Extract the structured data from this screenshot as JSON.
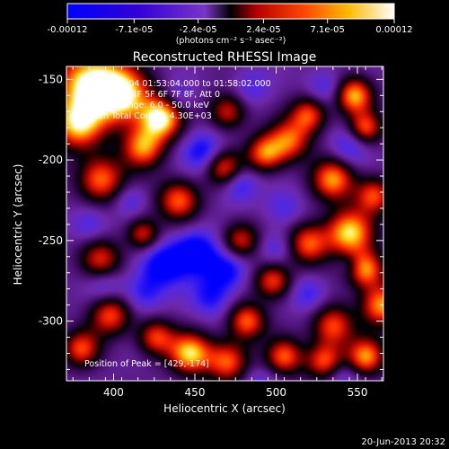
{
  "chart_data": {
    "type": "heatmap",
    "title": "Reconstructed RHESSI Image",
    "xlabel": "Heliocentric X (arcsec)",
    "ylabel": "Heliocentric Y (arcsec)",
    "xlim": [
      371,
      566
    ],
    "ylim": [
      -337,
      -142
    ],
    "x_ticks": [
      400,
      450,
      500,
      550
    ],
    "y_ticks": [
      -150,
      -200,
      -250,
      -300
    ],
    "colorbar": {
      "ticks": [
        "-0.00012",
        "-7.1e-05",
        "-2.4e-05",
        "2.4e-05",
        "7.1e-05",
        "0.00012"
      ],
      "tick_values": [
        -0.00012,
        -7.1e-05,
        -2.4e-05,
        2.4e-05,
        7.1e-05,
        0.00012
      ],
      "range": [
        -0.00012,
        0.00012
      ],
      "unit_label": "(photons cm⁻² s⁻¹ asec⁻²)"
    },
    "annotations": [
      "18-Nov-2004 01:53:04.000 to 01:58:02.000",
      "Detectors: 4F 5F 6F 7F 8F, Att 0",
      "Energy Range: 6.0 - 50.0 keV",
      "Clean    Total Counts: 4.30E+03"
    ],
    "peak_label": "Position of Peak = [429,-174]",
    "peak": [
      429,
      -174
    ],
    "features": [
      {
        "x": 385,
        "y": -152,
        "v": 1.0,
        "s": 14
      },
      {
        "x": 405,
        "y": -160,
        "v": 0.95,
        "s": 12
      },
      {
        "x": 429,
        "y": -174,
        "v": 1.0,
        "s": 9
      },
      {
        "x": 378,
        "y": -178,
        "v": 0.8,
        "s": 11
      },
      {
        "x": 418,
        "y": -192,
        "v": 0.7,
        "s": 9
      },
      {
        "x": 392,
        "y": -212,
        "v": 0.65,
        "s": 10
      },
      {
        "x": 440,
        "y": -225,
        "v": 0.6,
        "s": 9
      },
      {
        "x": 468,
        "y": -205,
        "v": 0.55,
        "s": 8
      },
      {
        "x": 493,
        "y": -196,
        "v": 0.6,
        "s": 8
      },
      {
        "x": 508,
        "y": -188,
        "v": 0.55,
        "s": 9
      },
      {
        "x": 520,
        "y": -172,
        "v": 0.55,
        "s": 8
      },
      {
        "x": 548,
        "y": -160,
        "v": 0.8,
        "s": 8
      },
      {
        "x": 555,
        "y": -180,
        "v": 0.5,
        "s": 7
      },
      {
        "x": 535,
        "y": -212,
        "v": 0.7,
        "s": 9
      },
      {
        "x": 560,
        "y": -222,
        "v": 0.55,
        "s": 8
      },
      {
        "x": 545,
        "y": -245,
        "v": 0.9,
        "s": 10
      },
      {
        "x": 520,
        "y": -252,
        "v": 0.6,
        "s": 9
      },
      {
        "x": 555,
        "y": -268,
        "v": 0.7,
        "s": 8
      },
      {
        "x": 565,
        "y": -290,
        "v": 0.75,
        "s": 9
      },
      {
        "x": 498,
        "y": -275,
        "v": 0.55,
        "s": 8
      },
      {
        "x": 482,
        "y": -300,
        "v": 0.6,
        "s": 8
      },
      {
        "x": 535,
        "y": -303,
        "v": 0.55,
        "s": 9
      },
      {
        "x": 555,
        "y": -322,
        "v": 0.7,
        "s": 8
      },
      {
        "x": 530,
        "y": -325,
        "v": 0.6,
        "s": 8
      },
      {
        "x": 505,
        "y": -322,
        "v": 0.55,
        "s": 8
      },
      {
        "x": 470,
        "y": -325,
        "v": 0.6,
        "s": 9
      },
      {
        "x": 447,
        "y": -320,
        "v": 0.85,
        "s": 9
      },
      {
        "x": 426,
        "y": -310,
        "v": 0.5,
        "s": 8
      },
      {
        "x": 398,
        "y": -296,
        "v": 0.55,
        "s": 9
      },
      {
        "x": 380,
        "y": -317,
        "v": 0.5,
        "s": 8
      },
      {
        "x": 392,
        "y": -262,
        "v": 0.45,
        "s": 9
      },
      {
        "x": 418,
        "y": -246,
        "v": 0.45,
        "s": 7
      },
      {
        "x": 478,
        "y": -250,
        "v": 0.45,
        "s": 8
      },
      {
        "x": 470,
        "y": -170,
        "v": 0.4,
        "s": 8
      },
      {
        "x": 455,
        "y": -195,
        "v": -0.7,
        "s": 9
      },
      {
        "x": 477,
        "y": -215,
        "v": -0.65,
        "s": 8
      },
      {
        "x": 450,
        "y": -257,
        "v": -0.85,
        "s": 10
      },
      {
        "x": 430,
        "y": -265,
        "v": -0.75,
        "s": 10
      },
      {
        "x": 470,
        "y": -268,
        "v": -0.7,
        "s": 9
      },
      {
        "x": 460,
        "y": -285,
        "v": -0.6,
        "s": 9
      },
      {
        "x": 418,
        "y": -283,
        "v": -0.55,
        "s": 9
      },
      {
        "x": 395,
        "y": -278,
        "v": -0.5,
        "s": 8
      },
      {
        "x": 500,
        "y": -255,
        "v": -0.5,
        "s": 8
      },
      {
        "x": 520,
        "y": -283,
        "v": -0.55,
        "s": 8
      },
      {
        "x": 505,
        "y": -230,
        "v": -0.45,
        "s": 8
      },
      {
        "x": 545,
        "y": -192,
        "v": -0.55,
        "s": 8
      },
      {
        "x": 530,
        "y": -155,
        "v": -0.5,
        "s": 8
      },
      {
        "x": 485,
        "y": -155,
        "v": -0.45,
        "s": 8
      },
      {
        "x": 440,
        "y": -160,
        "v": -0.45,
        "s": 7
      },
      {
        "x": 385,
        "y": -240,
        "v": -0.5,
        "s": 8
      },
      {
        "x": 410,
        "y": -225,
        "v": -0.45,
        "s": 7
      },
      {
        "x": 540,
        "y": -335,
        "v": -0.5,
        "s": 8
      },
      {
        "x": 490,
        "y": -340,
        "v": -0.45,
        "s": 8
      },
      {
        "x": 545,
        "y": -265,
        "v": -0.35,
        "s": 5
      }
    ]
  },
  "footer": {
    "timestamp": "20-Jun-2013 20:32"
  }
}
